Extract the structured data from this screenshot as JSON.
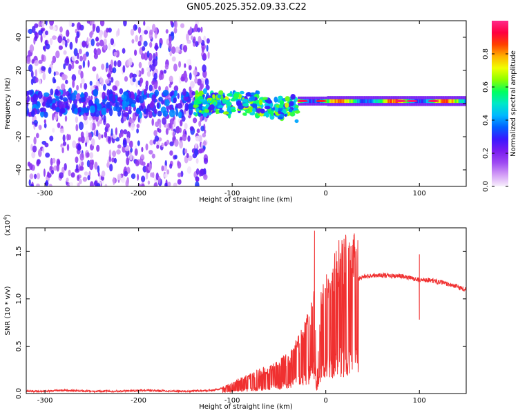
{
  "title": "GN05.2025.352.09.33.C22",
  "chart_data": [
    {
      "type": "heatmap",
      "name": "spectrogram",
      "xlabel": "Height of straight line (km)",
      "ylabel": "Frequency (Hz)",
      "xlim": [
        -320,
        150
      ],
      "ylim": [
        -50,
        50
      ],
      "xticks": [
        -300,
        -200,
        -100,
        0,
        100
      ],
      "yticks": [
        -40,
        -20,
        0,
        20,
        40
      ],
      "colorbar": {
        "label": "Normalized spectral amplitude",
        "range": [
          0,
          1
        ],
        "ticks": [
          0.0,
          0.2,
          0.4,
          0.6,
          0.8
        ],
        "colors": [
          "#f8f0fc",
          "#d29cf6",
          "#9e4af2",
          "#7a1cf0",
          "#3a18ff",
          "#0060ff",
          "#00b8ff",
          "#00e8c8",
          "#00ff60",
          "#8cff00",
          "#f0ff00",
          "#ffb000",
          "#ff4000",
          "#ff0040",
          "#ff2a8a"
        ]
      },
      "regions": [
        {
          "name": "noise",
          "x": [
            -320,
            -125
          ],
          "f_spread": 50,
          "amplitude": 0.15
        },
        {
          "name": "transition",
          "x": [
            -140,
            -30
          ],
          "f_center": 0,
          "f_spread": 8,
          "amplitude": 0.5
        },
        {
          "name": "stable-tone",
          "x": [
            -30,
            150
          ],
          "f_center": 1.5,
          "f_spread": 3,
          "amplitude": 0.9
        }
      ]
    },
    {
      "type": "line",
      "name": "snr",
      "xlabel": "Height of straight line (km)",
      "ylabel": "SNR (10 * v/v)",
      "yscale_label": "(x10^4)",
      "xlim": [
        -320,
        150
      ],
      "ylim": [
        0,
        1.75
      ],
      "xticks": [
        -300,
        -200,
        -100,
        0,
        100
      ],
      "yticks": [
        0.0,
        0.5,
        1.0,
        1.5
      ],
      "ytick_labels": [
        "0.0",
        "0.5",
        "1.0",
        "1.5"
      ],
      "color": "#f03030",
      "series": [
        {
          "name": "SNR",
          "x": [
            -320,
            -300,
            -280,
            -250,
            -220,
            -200,
            -150,
            -120,
            -110,
            -100,
            -90,
            -80,
            -70,
            -60,
            -50,
            -40,
            -30,
            -20,
            -15,
            -12,
            -10,
            -5,
            0,
            5,
            10,
            15,
            20,
            30,
            40,
            50,
            60,
            70,
            80,
            90,
            100,
            110,
            120,
            130,
            140,
            150
          ],
          "values": [
            0.02,
            0.02,
            0.03,
            0.02,
            0.02,
            0.03,
            0.02,
            0.03,
            0.05,
            0.08,
            0.12,
            0.15,
            0.18,
            0.2,
            0.25,
            0.3,
            0.4,
            0.55,
            0.75,
            0.9,
            0.05,
            0.75,
            0.85,
            0.95,
            1.0,
            1.1,
            1.15,
            1.2,
            1.23,
            1.25,
            1.25,
            1.24,
            1.24,
            1.22,
            1.2,
            1.2,
            1.18,
            1.16,
            1.13,
            1.1
          ],
          "spikes": [
            {
              "x": -12,
              "value": 1.72
            },
            {
              "x": 100,
              "value": 1.47
            },
            {
              "x": 100,
              "value": 0.78
            },
            {
              "x": 13,
              "value": 0.28
            }
          ]
        }
      ]
    }
  ]
}
